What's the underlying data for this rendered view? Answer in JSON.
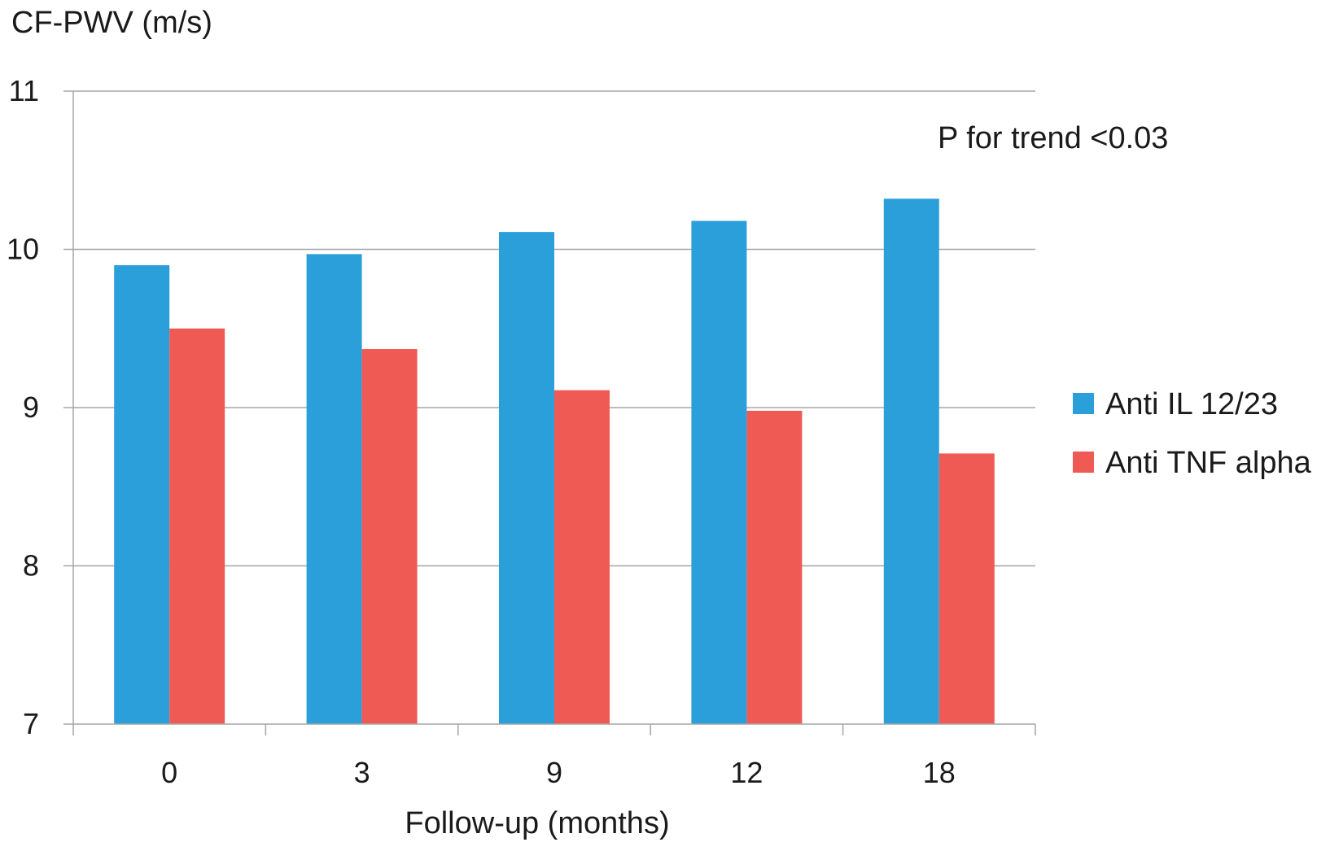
{
  "chart_data": {
    "type": "bar",
    "title": "",
    "ylabel": "CF-PWV (m/s)",
    "xlabel": "Follow-up (months)",
    "categories": [
      "0",
      "3",
      "9",
      "12",
      "18"
    ],
    "series": [
      {
        "name": "Anti IL 12/23",
        "color": "#2b9fd9",
        "values": [
          9.9,
          9.97,
          10.11,
          10.18,
          10.32
        ]
      },
      {
        "name": "Anti TNF alpha",
        "color": "#ef5a55",
        "values": [
          9.5,
          9.37,
          9.11,
          8.98,
          8.71
        ]
      }
    ],
    "ylim": [
      7,
      11
    ],
    "yticks": [
      "7",
      "8",
      "9",
      "10",
      "11"
    ],
    "grid": true,
    "legend_position": "right",
    "annotation": "P for trend <0.03"
  }
}
